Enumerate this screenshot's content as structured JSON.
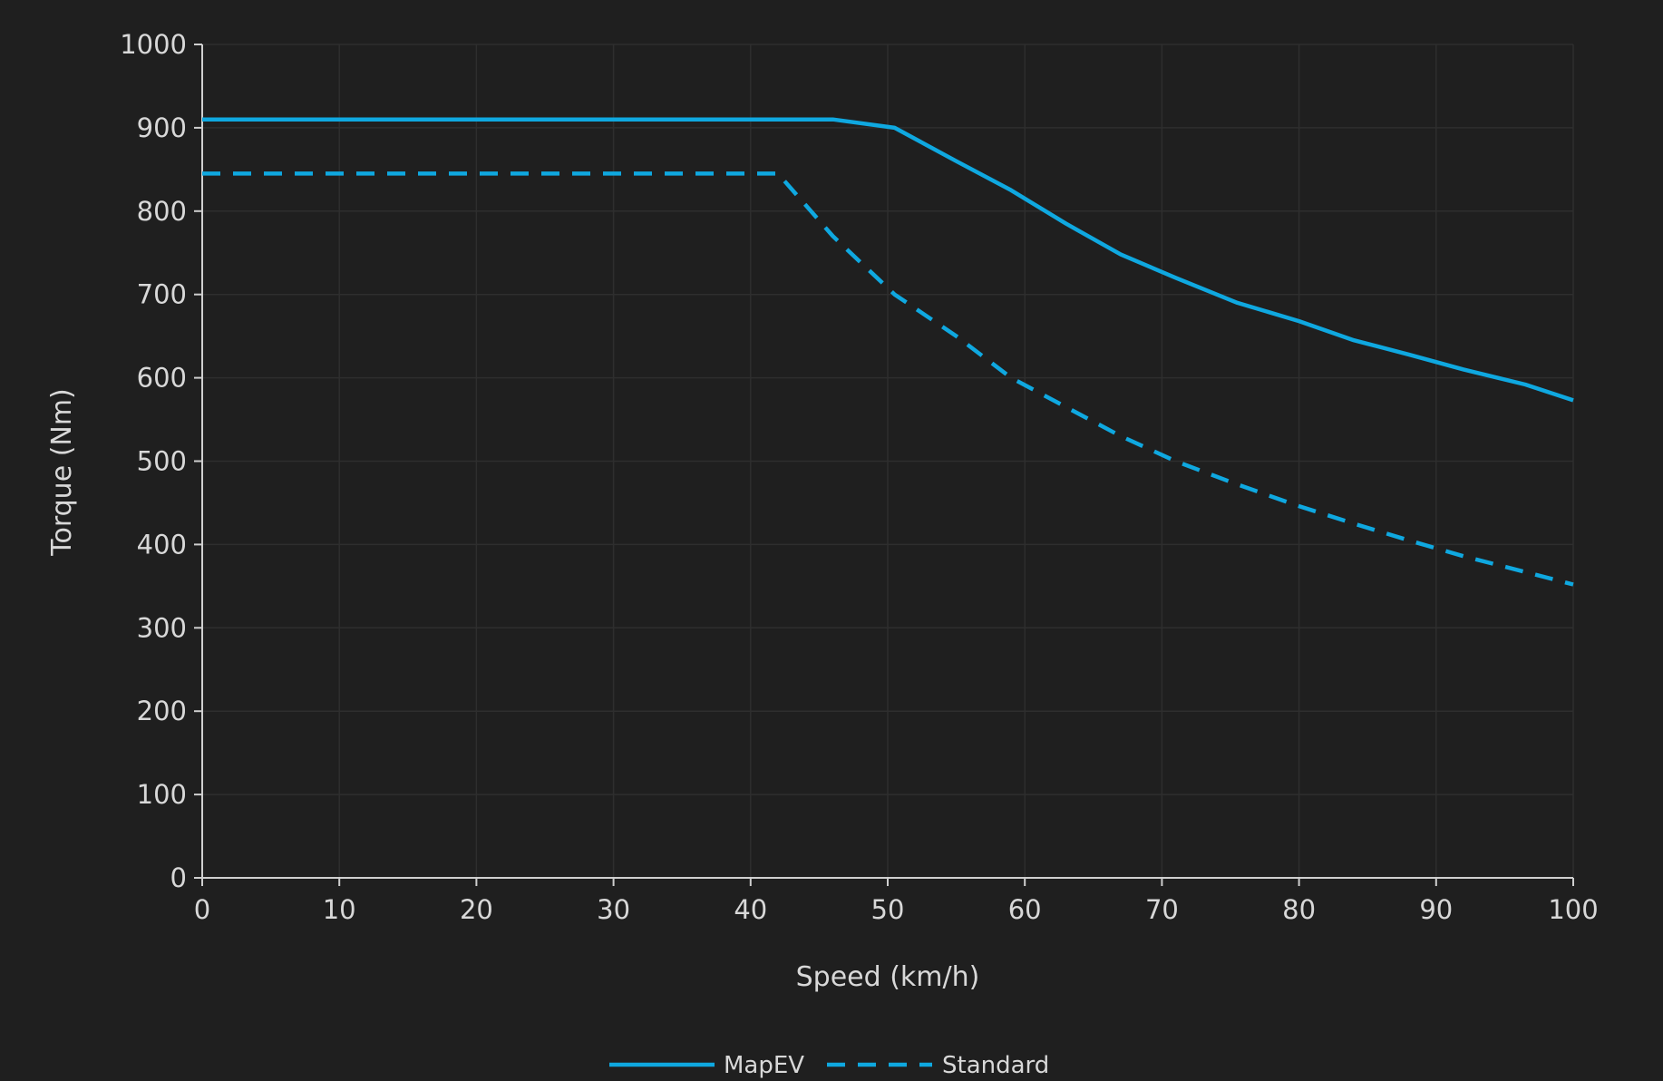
{
  "chart_data": {
    "type": "line",
    "title": "",
    "xlabel": "Speed (km/h)",
    "ylabel": "Torque (Nm)",
    "xlim": [
      0,
      100
    ],
    "ylim": [
      0,
      1000
    ],
    "x_ticks": [
      "0",
      "10",
      "20",
      "30",
      "40",
      "50",
      "60",
      "70",
      "80",
      "90",
      "100"
    ],
    "y_ticks": [
      "0",
      "100",
      "200",
      "300",
      "400",
      "500",
      "600",
      "700",
      "800",
      "900",
      "1000"
    ],
    "grid": true,
    "legend_position": "bottom-center",
    "series": [
      {
        "name": "MapEV",
        "style": "solid",
        "color": "#0fa8e0",
        "x": [
          0,
          10,
          20,
          30,
          40,
          46,
          50.5,
          55,
          59,
          63,
          67,
          71,
          75.5,
          80,
          84,
          88,
          92,
          96.5,
          100
        ],
        "y": [
          910,
          910,
          910,
          910,
          910,
          910,
          900,
          860,
          825,
          785,
          748,
          720,
          690,
          668,
          645,
          628,
          610,
          592,
          573
        ]
      },
      {
        "name": "Standard",
        "style": "dashed",
        "color": "#0fa8e0",
        "x": [
          0,
          10,
          20,
          30,
          40,
          42,
          46,
          50.5,
          55,
          59,
          63,
          67,
          71,
          75.5,
          80,
          84,
          88,
          92,
          96.5,
          100
        ],
        "y": [
          845,
          845,
          845,
          845,
          845,
          845,
          770,
          700,
          650,
          600,
          565,
          530,
          500,
          472,
          446,
          425,
          405,
          386,
          367,
          352
        ]
      }
    ]
  },
  "legend": {
    "items": [
      "MapEV",
      "Standard"
    ]
  }
}
